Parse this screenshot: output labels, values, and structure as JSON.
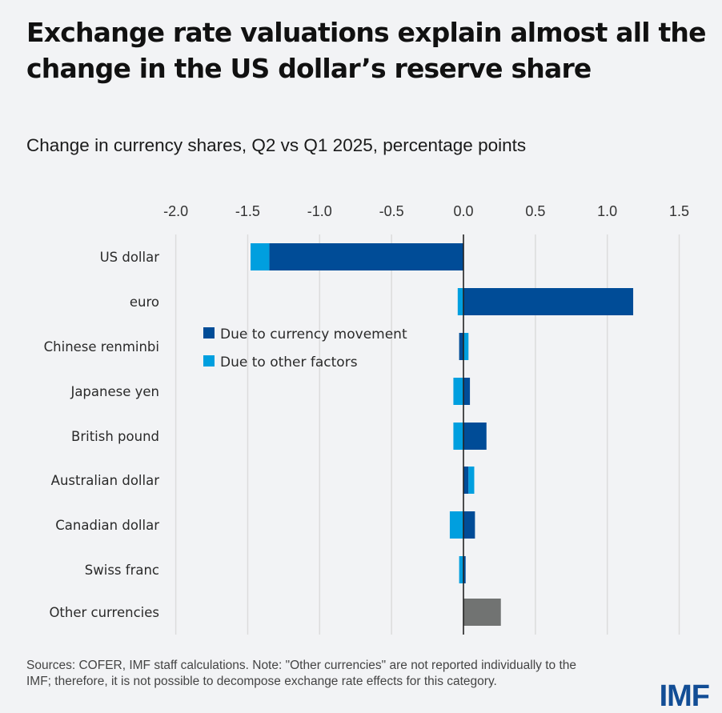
{
  "header": {
    "title": "Exchange rate valuations explain almost all the change in the US dollar’s reserve share",
    "subtitle": "Change in currency shares, Q2 vs Q1 2025, percentage points"
  },
  "footer": {
    "note": "Sources: COFER, IMF staff calculations. Note: \"Other currencies\" are not reported individually to the IMF; therefore, it is not possible to decompose exchange rate effects for this category.",
    "logo": "IMF"
  },
  "colors": {
    "currency_movement": "#004c97",
    "other_factors": "#009fdf",
    "other_currencies": "#717372",
    "zero_line": "#222222",
    "grid": "#dcdcdc",
    "logo": "#124d95"
  },
  "chart_data": {
    "type": "bar",
    "orientation": "horizontal",
    "stacked": true,
    "title": "Exchange rate valuations explain almost all the change in the US dollar’s reserve share",
    "subtitle": "Change in currency shares, Q2 vs Q1 2025, percentage points",
    "xlabel": "",
    "ylabel": "",
    "xlim": [
      -2.0,
      1.5
    ],
    "x_ticks": [
      -2.0,
      -1.5,
      -1.0,
      -0.5,
      0.0,
      0.5,
      1.0,
      1.5
    ],
    "x_tick_labels": [
      "-2.0",
      "-1.5",
      "-1.0",
      "-0.5",
      "0.0",
      "0.5",
      "1.0",
      "1.5"
    ],
    "x_axis_position": "top",
    "grid": true,
    "legend_position": "center-left",
    "categories": [
      "US dollar",
      "euro",
      "Chinese renminbi",
      "Japanese yen",
      "British pound",
      "Australian dollar",
      "Canadian dollar",
      "Swiss franc",
      "Other currencies"
    ],
    "series": [
      {
        "name": "Due to currency movement",
        "color": "#004c97",
        "values": [
          -1.35,
          1.18,
          -0.03,
          0.045,
          0.16,
          0.035,
          0.08,
          0.015,
          null
        ]
      },
      {
        "name": "Due to other factors",
        "color": "#009fdf",
        "values": [
          -0.13,
          -0.04,
          0.035,
          -0.07,
          -0.07,
          0.04,
          -0.095,
          -0.03,
          null
        ]
      },
      {
        "name": "Other currencies (total, not decomposed)",
        "color": "#717372",
        "values": [
          null,
          null,
          null,
          null,
          null,
          null,
          null,
          null,
          0.26
        ]
      }
    ],
    "legend": [
      "Due to currency movement",
      "Due to other factors"
    ]
  }
}
